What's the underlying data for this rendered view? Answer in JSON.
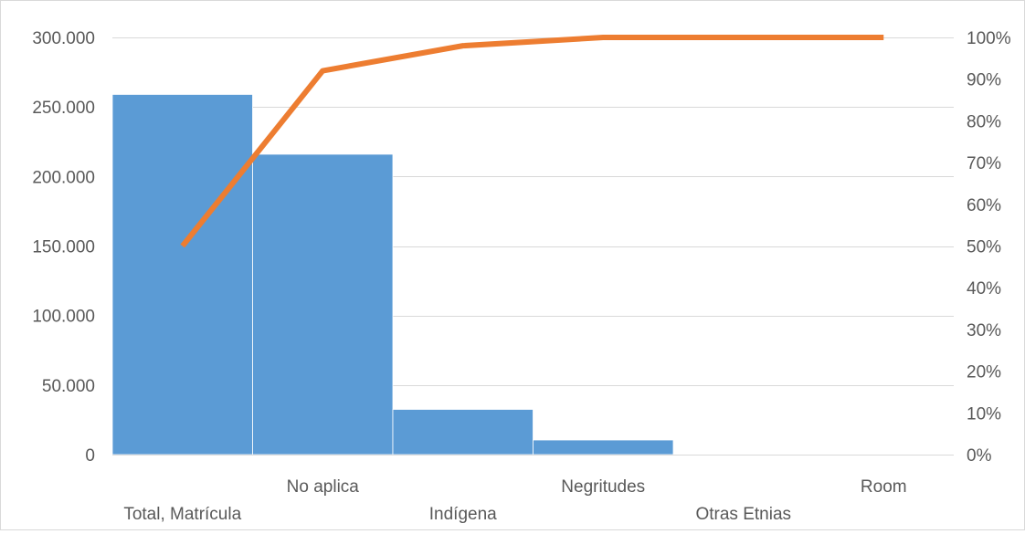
{
  "chart_data": {
    "type": "bar",
    "subtype": "pareto",
    "categories": [
      "Total, Matrícula",
      "No aplica",
      "Indígena",
      "Negritudes",
      "Otras Etnias",
      "Room"
    ],
    "series": [
      {
        "kind": "bar",
        "color": "#5b9bd5",
        "values": [
          259000,
          216000,
          32500,
          10500,
          200,
          0
        ]
      },
      {
        "kind": "line",
        "axis": "secondary",
        "color": "#ed7d31",
        "values": [
          50,
          92,
          98,
          100,
          100,
          100
        ]
      }
    ],
    "ylim": [
      0,
      300000
    ],
    "yticks": [
      "0",
      "50.000",
      "100.000",
      "150.000",
      "200.000",
      "250.000",
      "300.000"
    ],
    "y2lim": [
      0,
      100
    ],
    "y2ticks": [
      "0%",
      "10%",
      "20%",
      "30%",
      "40%",
      "50%",
      "60%",
      "70%",
      "80%",
      "90%",
      "100%"
    ],
    "grid": true,
    "legend": "none"
  }
}
